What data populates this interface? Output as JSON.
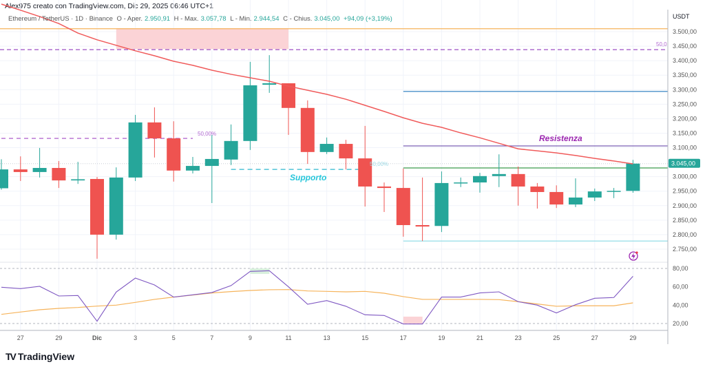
{
  "header": {
    "credit": "Alex975 creato con TradingView.com, Dic 29, 2025 06:46 UTC+1"
  },
  "legend": {
    "symbol": "Ethereum / TetherUS · 1D · Binance",
    "open_label": "O - Aper.",
    "open": "2.950,91",
    "high_label": "H - Max.",
    "high": "3.057,78",
    "low_label": "L - Min.",
    "low": "2.944,54",
    "close_label": "C - Chius.",
    "close": "3.045,00",
    "change": "+94,09 (+3,19%)"
  },
  "price_axis": {
    "currency": "USDT",
    "ticks": [
      {
        "value": 3500,
        "label": "3.500,00"
      },
      {
        "value": 3450,
        "label": "3.450,00"
      },
      {
        "value": 3400,
        "label": "3.400,00"
      },
      {
        "value": 3350,
        "label": "3.350,00"
      },
      {
        "value": 3300,
        "label": "3.300,00"
      },
      {
        "value": 3250,
        "label": "3.250,00"
      },
      {
        "value": 3200,
        "label": "3.200,00"
      },
      {
        "value": 3150,
        "label": "3.150,00"
      },
      {
        "value": 3100,
        "label": "3.100,00"
      },
      {
        "value": 3000,
        "label": "3.000,00"
      },
      {
        "value": 2950,
        "label": "2.950,00"
      },
      {
        "value": 2900,
        "label": "2.900,00"
      },
      {
        "value": 2850,
        "label": "2.850,00"
      },
      {
        "value": 2800,
        "label": "2.800,00"
      },
      {
        "value": 2750,
        "label": "2.750,00"
      }
    ],
    "last_price": {
      "value": 3045,
      "label": "3.045,00",
      "color": "#26a69a"
    }
  },
  "rsi_axis": {
    "ticks": [
      {
        "value": 80,
        "label": "80,00"
      },
      {
        "value": 60,
        "label": "60,00"
      },
      {
        "value": 40,
        "label": "40,00"
      },
      {
        "value": 20,
        "label": "20,00"
      }
    ]
  },
  "x_axis": {
    "labels": [
      {
        "day": 1,
        "label": "27"
      },
      {
        "day": 3,
        "label": "29"
      },
      {
        "day": 5,
        "label": "Dic"
      },
      {
        "day": 7,
        "label": "3"
      },
      {
        "day": 9,
        "label": "5"
      },
      {
        "day": 11,
        "label": "7"
      },
      {
        "day": 13,
        "label": "9"
      },
      {
        "day": 15,
        "label": "11"
      },
      {
        "day": 17,
        "label": "13"
      },
      {
        "day": 19,
        "label": "15"
      },
      {
        "day": 21,
        "label": "17"
      },
      {
        "day": 23,
        "label": "19"
      },
      {
        "day": 25,
        "label": "21"
      },
      {
        "day": 27,
        "label": "23"
      },
      {
        "day": 29,
        "label": "25"
      },
      {
        "day": 31,
        "label": "27"
      },
      {
        "day": 33,
        "label": "29"
      }
    ]
  },
  "annotations": {
    "resistance": {
      "label": "Resistenza",
      "color": "#9c27b0"
    },
    "support": {
      "label": "Supporto",
      "color": "#26c6da"
    },
    "fib_left": "50,00%",
    "fib_mid": "50,00%",
    "fib_right": "50,0"
  },
  "colors": {
    "up": "#26a69a",
    "down": "#ef5350",
    "ema": "#f05a5a",
    "rsi": "#7e57c2",
    "rsi_ma": "#f6b35a"
  },
  "chart_data": {
    "type": "candlestick",
    "dates": [
      "Nov 26",
      "Nov 27",
      "Nov 28",
      "Nov 29",
      "Nov 30",
      "Dic 1",
      "Dic 2",
      "Dic 3",
      "Dic 4",
      "Dic 5",
      "Dic 6",
      "Dic 7",
      "Dic 8",
      "Dic 9",
      "Dic 10",
      "Dic 11",
      "Dic 12",
      "Dic 13",
      "Dic 14",
      "Dic 15",
      "Dic 16",
      "Dic 17",
      "Dic 18",
      "Dic 19",
      "Dic 20",
      "Dic 21",
      "Dic 22",
      "Dic 23",
      "Dic 24",
      "Dic 25",
      "Dic 26",
      "Dic 27",
      "Dic 28",
      "Dic 29"
    ],
    "ohlc": [
      [
        2960,
        3060,
        2955,
        3025
      ],
      [
        3025,
        3070,
        2985,
        3016
      ],
      [
        3016,
        3099,
        2997,
        3030
      ],
      [
        3030,
        3054,
        2961,
        2987
      ],
      [
        2987,
        3051,
        2975,
        2991
      ],
      [
        2992,
        2999,
        2717,
        2800
      ],
      [
        2800,
        3032,
        2783,
        2997
      ],
      [
        2997,
        3213,
        2985,
        3187
      ],
      [
        3187,
        3239,
        3066,
        3132
      ],
      [
        3132,
        3191,
        2983,
        3021
      ],
      [
        3021,
        3068,
        3011,
        3037
      ],
      [
        3037,
        3144,
        2909,
        3061
      ],
      [
        3059,
        3180,
        3040,
        3123
      ],
      [
        3123,
        3396,
        3092,
        3315
      ],
      [
        3317,
        3419,
        3289,
        3322
      ],
      [
        3322,
        3322,
        3144,
        3237
      ],
      [
        3237,
        3263,
        3044,
        3085
      ],
      [
        3085,
        3135,
        3078,
        3113
      ],
      [
        3113,
        3127,
        3025,
        3063
      ],
      [
        3063,
        3175,
        2897,
        2966
      ],
      [
        2966,
        2980,
        2878,
        2961
      ],
      [
        2961,
        3028,
        2793,
        2833
      ],
      [
        2833,
        2997,
        2778,
        2828
      ],
      [
        2830,
        3018,
        2809,
        2978
      ],
      [
        2978,
        2997,
        2964,
        2980
      ],
      [
        2980,
        3013,
        2945,
        3002
      ],
      [
        3002,
        3077,
        2964,
        3009
      ],
      [
        3009,
        3035,
        2900,
        2966
      ],
      [
        2966,
        2978,
        2890,
        2947
      ],
      [
        2947,
        2970,
        2892,
        2904
      ],
      [
        2904,
        2994,
        2895,
        2928
      ],
      [
        2928,
        2959,
        2916,
        2949
      ],
      [
        2949,
        2961,
        2926,
        2951
      ],
      [
        2950.91,
        3057.78,
        2944.54,
        3045
      ]
    ],
    "ema": [
      3595,
      3574,
      3552,
      3528,
      3495,
      3472,
      3453,
      3434,
      3417,
      3398,
      3384,
      3367,
      3353,
      3341,
      3329,
      3312,
      3298,
      3284,
      3267,
      3246,
      3225,
      3203,
      3184,
      3170,
      3151,
      3134,
      3115,
      3096,
      3089,
      3082,
      3073,
      3063,
      3054,
      3044
    ],
    "rsi": [
      59.5,
      58,
      60.5,
      50,
      50.5,
      22.5,
      54.3,
      69.5,
      62,
      48.8,
      51.3,
      53.8,
      61.3,
      76.8,
      77.5,
      60,
      41,
      45,
      38.8,
      29.5,
      28.8,
      19.5,
      19.5,
      48.8,
      48.8,
      53.3,
      54.5,
      43.8,
      40,
      31.5,
      40.5,
      47.5,
      48.3,
      71.5
    ],
    "rsi_ma": [
      30,
      32.5,
      35,
      36.5,
      37.5,
      39,
      40,
      43,
      46.3,
      48.8,
      51,
      53.3,
      54.8,
      56,
      56.8,
      57,
      55.5,
      55,
      54.5,
      55,
      53,
      49.3,
      46.3,
      46.3,
      46.3,
      46.3,
      46,
      43.8,
      41.3,
      38.8,
      39.3,
      39.3,
      39.3,
      42.5
    ],
    "price_range": [
      2700,
      3540
    ],
    "rsi_range": [
      10,
      90
    ],
    "levels": [
      {
        "name": "orange-level",
        "price": 3510,
        "from": 0,
        "color": "#f6b35a",
        "style": "solid"
      },
      {
        "name": "fib-dashed-level",
        "price": 3438,
        "from": 0,
        "color": "#9c4fc4",
        "style": "dashed"
      },
      {
        "name": "blue-level",
        "price": 3294,
        "from": 21,
        "color": "#4a90c8",
        "style": "solid"
      },
      {
        "name": "resistance-level",
        "price": 3106,
        "from": 21,
        "color": "#7a5fb5",
        "style": "solid"
      },
      {
        "name": "green-level",
        "price": 3030,
        "from": 21,
        "color": "#3a9a4a",
        "style": "solid"
      },
      {
        "name": "low-level",
        "price": 2778,
        "from": 21,
        "color": "#9ee0e8",
        "style": "solid"
      }
    ],
    "zone": {
      "from": 6,
      "to": 15,
      "top": 3512,
      "bottom": 3440,
      "color": "#fbd3d6"
    },
    "fib_left_line": {
      "price": 3132,
      "from": 0,
      "to": 10,
      "color": "#b36ad1"
    },
    "support_line": {
      "price": 3025,
      "from": 12,
      "to": 18.8,
      "color": "#4fc3d8"
    }
  }
}
